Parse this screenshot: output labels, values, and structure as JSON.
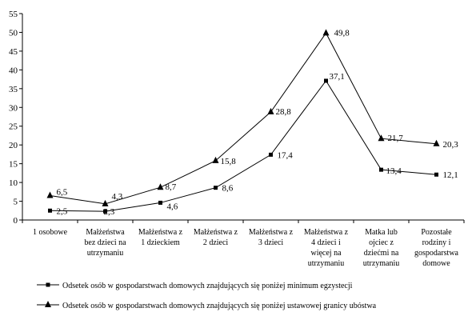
{
  "chart_data": {
    "type": "line",
    "title": "",
    "xlabel": "",
    "ylabel": "",
    "ylim": [
      0,
      55
    ],
    "yticks": [
      0,
      5,
      10,
      15,
      20,
      25,
      30,
      35,
      40,
      45,
      50,
      55
    ],
    "grid": false,
    "legend_position": "bottom",
    "categories": [
      [
        "1 osobowe"
      ],
      [
        "Małżeństwa",
        "bez dzieci na",
        "utrzymaniu"
      ],
      [
        "Małżeństwa z",
        "1 dzieckiem"
      ],
      [
        "Małżeństwa z",
        "2 dzieci"
      ],
      [
        "Małżeństwa z",
        "3 dzieci"
      ],
      [
        "Małżeństwa z",
        "4 dzieci i",
        "więcej na",
        "utrzymaniu"
      ],
      [
        "Matka lub",
        "ojciec z",
        "dziećmi na",
        "utrzymaniu"
      ],
      [
        "Pozostałe",
        "rodziny i",
        "gospodarstwa",
        "domowe"
      ]
    ],
    "series": [
      {
        "name": "Odsetek osób w gospodarstwach domowych znajdujących się poniżej minimum egzystecji",
        "marker": "square",
        "values": [
          2.5,
          2.3,
          4.6,
          8.6,
          17.4,
          37.1,
          13.4,
          12.1
        ],
        "labels": [
          "2,5",
          "2,3",
          "4,6",
          "8,6",
          "17,4",
          "37,1",
          "13,4",
          "12,1"
        ]
      },
      {
        "name": "Odsetek osób w gospodarstwach domowych znajdujących się poniżej ustawowej granicy ubóstwa",
        "marker": "triangle",
        "values": [
          6.5,
          4.3,
          8.7,
          15.8,
          28.8,
          49.8,
          21.7,
          20.3
        ],
        "labels": [
          "6,5",
          "4,3",
          "8,7",
          "15,8",
          "28,8",
          "49,8",
          "21,7",
          "20,3"
        ]
      }
    ]
  },
  "colors": {
    "line": "#000000",
    "background": "#ffffff"
  }
}
